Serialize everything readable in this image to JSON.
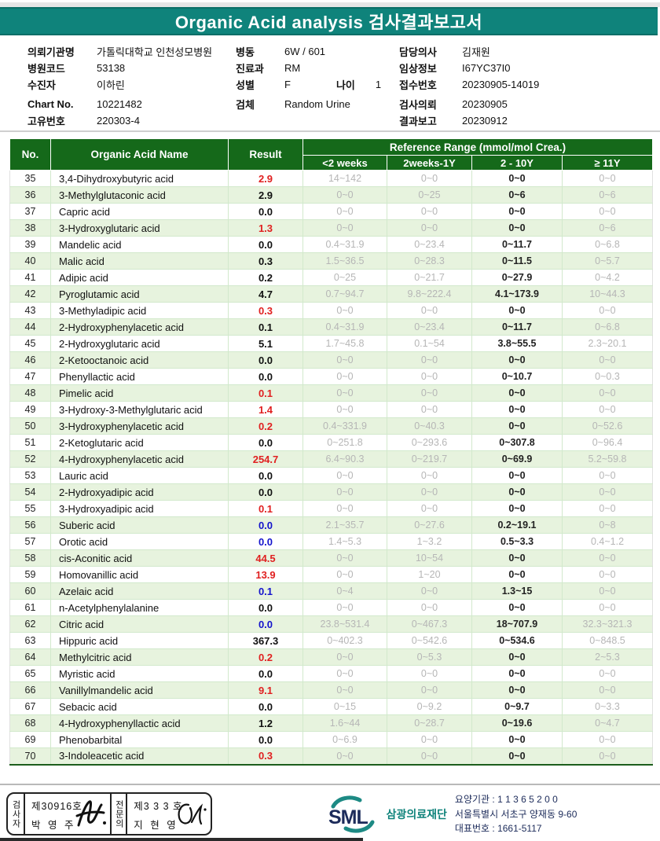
{
  "title": "Organic Acid analysis 검사결과보고서",
  "info": {
    "col1": [
      {
        "label": "의뢰기관명",
        "value": "가톨릭대학교 인천성모병원"
      },
      {
        "label": "병원코드",
        "value": "53138"
      },
      {
        "label": "수진자",
        "value": "이하린"
      },
      {
        "label": "Chart No.",
        "value": "10221482"
      },
      {
        "label": "고유번호",
        "value": "220303-4"
      }
    ],
    "col2": [
      {
        "label": "병동",
        "value": "6W / 601"
      },
      {
        "label": "진료과",
        "value": "RM"
      },
      {
        "label": "성별",
        "value": "F"
      },
      {
        "label": "검체",
        "value": "Random Urine"
      }
    ],
    "age_label": "나이",
    "age_value": "1",
    "col3": [
      {
        "label": "담당의사",
        "value": "김재원"
      },
      {
        "label": "임상정보",
        "value": "I67YC37I0"
      },
      {
        "label": "접수번호",
        "value": "20230905-14019"
      },
      {
        "label": "검사의뢰",
        "value": "20230905"
      },
      {
        "label": "결과보고",
        "value": "20230912"
      }
    ]
  },
  "table": {
    "headers": {
      "no": "No.",
      "name": "Organic Acid Name",
      "result": "Result",
      "ref_group": "Reference Range (mmol/mol Crea.)",
      "sub": [
        "<2 weeks",
        "2weeks-1Y",
        "2 - 10Y",
        "≥ 11Y"
      ]
    },
    "rows": [
      {
        "no": "35",
        "name": "3,4-Dihydroxybutyric acid",
        "result": "2.9",
        "flag": "high",
        "refs": [
          "14~142",
          "0~0",
          "0~0",
          "0~0"
        ]
      },
      {
        "no": "36",
        "name": "3-Methylglutaconic acid",
        "result": "2.9",
        "flag": "normal",
        "refs": [
          "0~0",
          "0~25",
          "0~6",
          "0~6"
        ]
      },
      {
        "no": "37",
        "name": "Capric acid",
        "result": "0.0",
        "flag": "normal",
        "refs": [
          "0~0",
          "0~0",
          "0~0",
          "0~0"
        ]
      },
      {
        "no": "38",
        "name": "3-Hydroxyglutaric acid",
        "result": "1.3",
        "flag": "high",
        "refs": [
          "0~0",
          "0~0",
          "0~0",
          "0~6"
        ]
      },
      {
        "no": "39",
        "name": "Mandelic acid",
        "result": "0.0",
        "flag": "normal",
        "refs": [
          "0.4~31.9",
          "0~23.4",
          "0~11.7",
          "0~6.8"
        ]
      },
      {
        "no": "40",
        "name": "Malic acid",
        "result": "0.3",
        "flag": "normal",
        "refs": [
          "1.5~36.5",
          "0~28.3",
          "0~11.5",
          "0~5.7"
        ]
      },
      {
        "no": "41",
        "name": "Adipic acid",
        "result": "0.2",
        "flag": "normal",
        "refs": [
          "0~25",
          "0~21.7",
          "0~27.9",
          "0~4.2"
        ]
      },
      {
        "no": "42",
        "name": "Pyroglutamic acid",
        "result": "4.7",
        "flag": "normal",
        "refs": [
          "0.7~94.7",
          "9.8~222.4",
          "4.1~173.9",
          "10~44.3"
        ]
      },
      {
        "no": "43",
        "name": "3-Methyladipic acid",
        "result": "0.3",
        "flag": "high",
        "refs": [
          "0~0",
          "0~0",
          "0~0",
          "0~0"
        ]
      },
      {
        "no": "44",
        "name": "2-Hydroxyphenylacetic acid",
        "result": "0.1",
        "flag": "normal",
        "refs": [
          "0.4~31.9",
          "0~23.4",
          "0~11.7",
          "0~6.8"
        ]
      },
      {
        "no": "45",
        "name": "2-Hydroxyglutaric acid",
        "result": "5.1",
        "flag": "normal",
        "refs": [
          "1.7~45.8",
          "0.1~54",
          "3.8~55.5",
          "2.3~20.1"
        ]
      },
      {
        "no": "46",
        "name": "2-Ketooctanoic acid",
        "result": "0.0",
        "flag": "normal",
        "refs": [
          "0~0",
          "0~0",
          "0~0",
          "0~0"
        ]
      },
      {
        "no": "47",
        "name": "Phenyllactic acid",
        "result": "0.0",
        "flag": "normal",
        "refs": [
          "0~0",
          "0~0",
          "0~10.7",
          "0~0.3"
        ]
      },
      {
        "no": "48",
        "name": "Pimelic acid",
        "result": "0.1",
        "flag": "high",
        "refs": [
          "0~0",
          "0~0",
          "0~0",
          "0~0"
        ]
      },
      {
        "no": "49",
        "name": "3-Hydroxy-3-Methylglutaric acid",
        "result": "1.4",
        "flag": "high",
        "refs": [
          "0~0",
          "0~0",
          "0~0",
          "0~0"
        ]
      },
      {
        "no": "50",
        "name": "3-Hydroxyphenylacetic acid",
        "result": "0.2",
        "flag": "high",
        "refs": [
          "0.4~331.9",
          "0~40.3",
          "0~0",
          "0~52.6"
        ]
      },
      {
        "no": "51",
        "name": "2-Ketoglutaric acid",
        "result": "0.0",
        "flag": "normal",
        "refs": [
          "0~251.8",
          "0~293.6",
          "0~307.8",
          "0~96.4"
        ]
      },
      {
        "no": "52",
        "name": "4-Hydroxyphenylacetic acid",
        "result": "254.7",
        "flag": "high",
        "refs": [
          "6.4~90.3",
          "0~219.7",
          "0~69.9",
          "5.2~59.8"
        ]
      },
      {
        "no": "53",
        "name": "Lauric acid",
        "result": "0.0",
        "flag": "normal",
        "refs": [
          "0~0",
          "0~0",
          "0~0",
          "0~0"
        ]
      },
      {
        "no": "54",
        "name": "2-Hydroxyadipic acid",
        "result": "0.0",
        "flag": "normal",
        "refs": [
          "0~0",
          "0~0",
          "0~0",
          "0~0"
        ]
      },
      {
        "no": "55",
        "name": "3-Hydroxyadipic acid",
        "result": "0.1",
        "flag": "high",
        "refs": [
          "0~0",
          "0~0",
          "0~0",
          "0~0"
        ]
      },
      {
        "no": "56",
        "name": "Suberic acid",
        "result": "0.0",
        "flag": "low",
        "refs": [
          "2.1~35.7",
          "0~27.6",
          "0.2~19.1",
          "0~8"
        ]
      },
      {
        "no": "57",
        "name": "Orotic acid",
        "result": "0.0",
        "flag": "low",
        "refs": [
          "1.4~5.3",
          "1~3.2",
          "0.5~3.3",
          "0.4~1.2"
        ]
      },
      {
        "no": "58",
        "name": "cis-Aconitic acid",
        "result": "44.5",
        "flag": "high",
        "refs": [
          "0~0",
          "10~54",
          "0~0",
          "0~0"
        ]
      },
      {
        "no": "59",
        "name": "Homovanillic acid",
        "result": "13.9",
        "flag": "high",
        "refs": [
          "0~0",
          "1~20",
          "0~0",
          "0~0"
        ]
      },
      {
        "no": "60",
        "name": "Azelaic acid",
        "result": "0.1",
        "flag": "low",
        "refs": [
          "0~4",
          "0~0",
          "1.3~15",
          "0~0"
        ]
      },
      {
        "no": "61",
        "name": "n-Acetylphenylalanine",
        "result": "0.0",
        "flag": "normal",
        "refs": [
          "0~0",
          "0~0",
          "0~0",
          "0~0"
        ]
      },
      {
        "no": "62",
        "name": "Citric acid",
        "result": "0.0",
        "flag": "low",
        "refs": [
          "23.8~531.4",
          "0~467.3",
          "18~707.9",
          "32.3~321.3"
        ]
      },
      {
        "no": "63",
        "name": "Hippuric acid",
        "result": "367.3",
        "flag": "normal",
        "refs": [
          "0~402.3",
          "0~542.6",
          "0~534.6",
          "0~848.5"
        ]
      },
      {
        "no": "64",
        "name": "Methylcitric acid",
        "result": "0.2",
        "flag": "high",
        "refs": [
          "0~0",
          "0~5.3",
          "0~0",
          "2~5.3"
        ]
      },
      {
        "no": "65",
        "name": "Myristic acid",
        "result": "0.0",
        "flag": "normal",
        "refs": [
          "0~0",
          "0~0",
          "0~0",
          "0~0"
        ]
      },
      {
        "no": "66",
        "name": "Vanillylmandelic acid",
        "result": "9.1",
        "flag": "high",
        "refs": [
          "0~0",
          "0~0",
          "0~0",
          "0~0"
        ]
      },
      {
        "no": "67",
        "name": "Sebacic acid",
        "result": "0.0",
        "flag": "normal",
        "refs": [
          "0~15",
          "0~9.2",
          "0~9.7",
          "0~3.3"
        ]
      },
      {
        "no": "68",
        "name": "4-Hydroxyphenyllactic acid",
        "result": "1.2",
        "flag": "normal",
        "refs": [
          "1.6~44",
          "0~28.7",
          "0~19.6",
          "0~4.7"
        ]
      },
      {
        "no": "69",
        "name": "Phenobarbital",
        "result": "0.0",
        "flag": "normal",
        "refs": [
          "0~6.9",
          "0~0",
          "0~0",
          "0~0"
        ]
      },
      {
        "no": "70",
        "name": "3-Indoleacetic acid",
        "result": "0.3",
        "flag": "high",
        "refs": [
          "0~0",
          "0~0",
          "0~0",
          "0~0"
        ]
      }
    ]
  },
  "footer": {
    "examiner_role": "검사자",
    "examiner_cert": "제30916호",
    "examiner_name": "박 영 주",
    "specialist_role": "전문의",
    "specialist_cert": "제3 3 3 호",
    "specialist_name": "지 현 영",
    "org_logo": "SML",
    "org_name": "삼광의료재단",
    "address_line1": "요양기관 : 1 1 3 6 5 2 0 0",
    "address_line2": "서울특별시 서초구 양재동 9-60",
    "address_line3": "대표번호 : 1661-5117"
  },
  "colors": {
    "title_teal": "#0f837b",
    "table_header_green": "#15691a",
    "alt_row_green": "#e7f3de",
    "result_high": "#e02020",
    "result_low": "#1414cc",
    "ref_gray": "#b6b6b6",
    "navy": "#1c2b5a"
  }
}
